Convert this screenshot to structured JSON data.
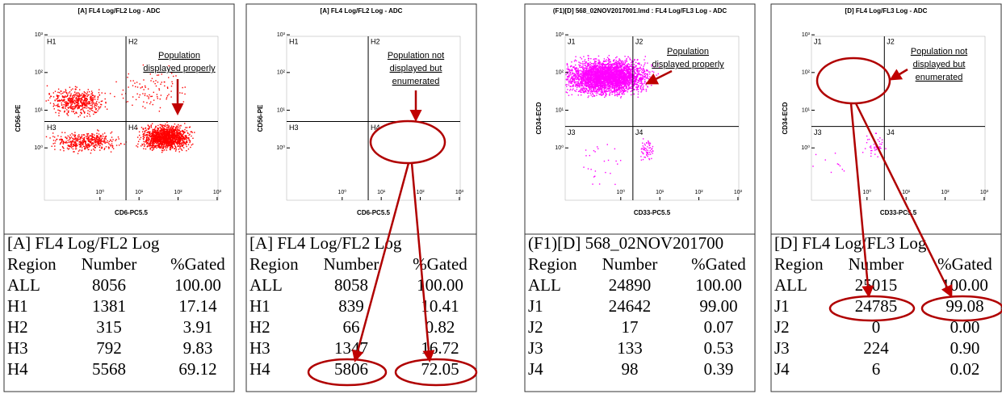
{
  "panels": [
    {
      "plot": {
        "title": "[A] FL4 Log/FL2 Log - ADC",
        "x_label": "CD6-PC5.5",
        "y_label": "CD56-PE",
        "x_ticks": [
          "10⁰",
          "10¹",
          "10²",
          "10³"
        ],
        "y_ticks": [
          "10⁰",
          "10¹",
          "10²",
          "10³"
        ],
        "quadrants": [
          "H1",
          "H2",
          "H3",
          "H4"
        ],
        "annotation": [
          "Population",
          "displayed properly"
        ]
      },
      "table": {
        "title": "[A] FL4 Log/FL2 Log",
        "header": [
          "Region",
          "Number",
          "%Gated"
        ],
        "rows": [
          [
            "ALL",
            "8056",
            "100.00"
          ],
          [
            "H1",
            "1381",
            "17.14"
          ],
          [
            "H2",
            "315",
            "3.91"
          ],
          [
            "H3",
            "792",
            "9.83"
          ],
          [
            "H4",
            "5568",
            "69.12"
          ]
        ]
      }
    },
    {
      "plot": {
        "title": "[A] FL4 Log/FL2 Log - ADC",
        "x_label": "CD6-PC5.5",
        "y_label": "CD56-PE",
        "x_ticks": [
          "10⁰",
          "10¹",
          "10²",
          "10³"
        ],
        "y_ticks": [
          "10⁰",
          "10¹",
          "10²",
          "10³"
        ],
        "quadrants": [
          "H1",
          "H2",
          "H3",
          "H4"
        ],
        "annotation": [
          "Population not",
          "displayed but",
          "enumerated"
        ]
      },
      "table": {
        "title": "[A] FL4 Log/FL2 Log",
        "header": [
          "Region",
          "Number",
          "%Gated"
        ],
        "rows": [
          [
            "ALL",
            "8058",
            "100.00"
          ],
          [
            "H1",
            "839",
            "10.41"
          ],
          [
            "H2",
            "66",
            "0.82"
          ],
          [
            "H3",
            "1347",
            "16.72"
          ],
          [
            "H4",
            "5806",
            "72.05"
          ]
        ]
      }
    },
    {
      "plot": {
        "title": "(F1)[D] 568_02NOV2017001.lmd : FL4 Log/FL3 Log - ADC",
        "x_label": "CD33-PC5.5",
        "y_label": "CD34-ECD",
        "x_ticks": [
          "10⁰",
          "10¹",
          "10²",
          "10³"
        ],
        "y_ticks": [
          "10⁰",
          "10¹",
          "10²",
          "10³"
        ],
        "quadrants": [
          "J1",
          "J2",
          "J3",
          "J4"
        ],
        "annotation": [
          "Population",
          "displayed properly"
        ]
      },
      "table": {
        "title": "(F1)[D] 568_02NOV201700",
        "header": [
          "Region",
          "Number",
          "%Gated"
        ],
        "rows": [
          [
            "ALL",
            "24890",
            "100.00"
          ],
          [
            "J1",
            "24642",
            "99.00"
          ],
          [
            "J2",
            "17",
            "0.07"
          ],
          [
            "J3",
            "133",
            "0.53"
          ],
          [
            "J4",
            "98",
            "0.39"
          ]
        ]
      }
    },
    {
      "plot": {
        "title": "[D] FL4 Log/FL3 Log - ADC",
        "x_label": "CD33-PC5.5",
        "y_label": "CD34-ECD",
        "x_ticks": [
          "10⁰",
          "10¹",
          "10²",
          "10³"
        ],
        "y_ticks": [
          "10⁰",
          "10¹",
          "10²",
          "10³"
        ],
        "quadrants": [
          "J1",
          "J2",
          "J3",
          "J4"
        ],
        "annotation": [
          "Population not",
          "displayed but",
          "enumerated"
        ]
      },
      "table": {
        "title": "[D] FL4 Log/FL3 Log",
        "header": [
          "Region",
          "Number",
          "%Gated"
        ],
        "rows": [
          [
            "ALL",
            "25015",
            "100.00"
          ],
          [
            "J1",
            "24785",
            "99.08"
          ],
          [
            "J2",
            "0",
            "0.00"
          ],
          [
            "J3",
            "224",
            "0.90"
          ],
          [
            "J4",
            "6",
            "0.02"
          ]
        ]
      }
    }
  ]
}
